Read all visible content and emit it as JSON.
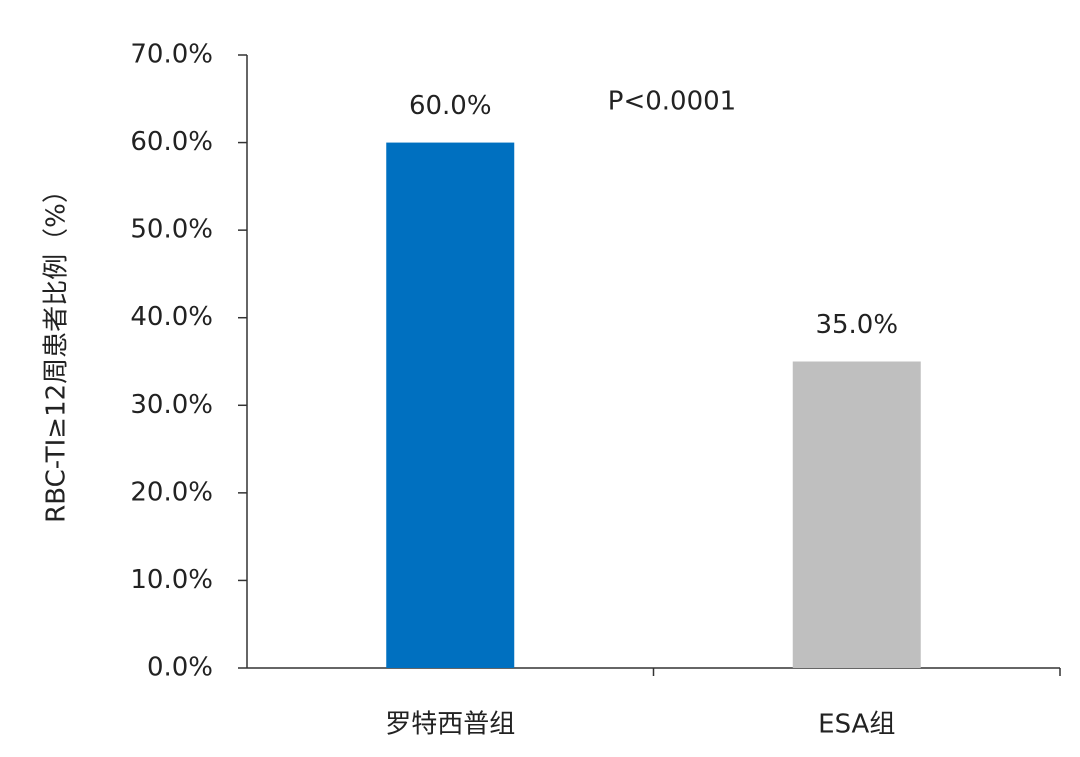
{
  "chart_data": {
    "type": "bar",
    "y_label": "RBC-TI≥12周患者比例（%）",
    "annotation": "P<0.0001",
    "categories": [
      "罗特西普组",
      "ESA组"
    ],
    "values": [
      60,
      35
    ],
    "value_labels": [
      "60.0%",
      "35.0%"
    ],
    "colors": [
      "#0070c0",
      "#bfbfbf"
    ],
    "ylim": [
      0,
      70
    ],
    "yticks": [
      {
        "value": 0,
        "label": "0.0%"
      },
      {
        "value": 10,
        "label": "10.0%"
      },
      {
        "value": 20,
        "label": "20.0%"
      },
      {
        "value": 30,
        "label": "30.0%"
      },
      {
        "value": 40,
        "label": "40.0%"
      },
      {
        "value": 50,
        "label": "50.0%"
      },
      {
        "value": 60,
        "label": "60.0%"
      },
      {
        "value": 70,
        "label": "70.0%"
      }
    ],
    "grid": false
  }
}
